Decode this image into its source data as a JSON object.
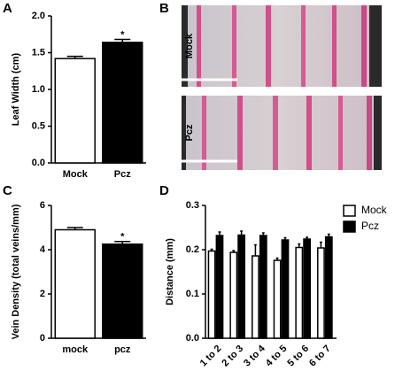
{
  "panel_labels": [
    "A",
    "B",
    "C",
    "D"
  ],
  "image_panel": {
    "labels": [
      "Mock",
      "Pcz"
    ]
  },
  "chart_data": [
    {
      "type": "bar",
      "y_label": "Leaf Width (cm)",
      "categories": [
        "Mock",
        "Pcz"
      ],
      "values": [
        1.42,
        1.64
      ],
      "errors": [
        0.03,
        0.04
      ],
      "colors": [
        "#ffffff",
        "#000000"
      ],
      "annotation": "*",
      "ylim": [
        0,
        2
      ],
      "yticks": [
        {
          "value": 0,
          "label": "0.0"
        },
        {
          "value": 0.5,
          "label": "0.5"
        },
        {
          "value": 1,
          "label": "1.0"
        },
        {
          "value": 1.5,
          "label": "1.5"
        },
        {
          "value": 2,
          "label": "2.0"
        }
      ]
    },
    {
      "type": "bar",
      "y_label": "Vein Density (total veins/mm)",
      "categories": [
        "mock",
        "pcz"
      ],
      "values": [
        4.9,
        4.25
      ],
      "errors": [
        0.1,
        0.12
      ],
      "colors": [
        "#ffffff",
        "#000000"
      ],
      "annotation": "*",
      "ylim": [
        0,
        6
      ],
      "yticks": [
        0,
        2,
        4,
        6
      ]
    },
    {
      "type": "grouped_bar",
      "y_label": "Distance (mm)",
      "categories": [
        "1 to 2",
        "2 to 3",
        "3 to 4",
        "4 to 5",
        "5 to 6",
        "6 to 7"
      ],
      "series": [
        {
          "name": "Mock",
          "color": "#ffffff",
          "values": [
            0.197,
            0.194,
            0.186,
            0.176,
            0.205,
            0.204
          ],
          "errors": [
            0.004,
            0.004,
            0.025,
            0.005,
            0.008,
            0.013
          ]
        },
        {
          "name": "Pcz",
          "color": "#000000",
          "values": [
            0.232,
            0.233,
            0.232,
            0.222,
            0.224,
            0.229
          ],
          "errors": [
            0.008,
            0.009,
            0.006,
            0.005,
            0.004,
            0.006
          ]
        }
      ],
      "legend": "top-right",
      "ylim": [
        0,
        0.3
      ],
      "yticks": [
        {
          "value": 0,
          "label": "0.0"
        },
        {
          "value": 0.1,
          "label": "0.1"
        },
        {
          "value": 0.2,
          "label": "0.2"
        },
        {
          "value": 0.3,
          "label": "0.3"
        }
      ]
    }
  ]
}
